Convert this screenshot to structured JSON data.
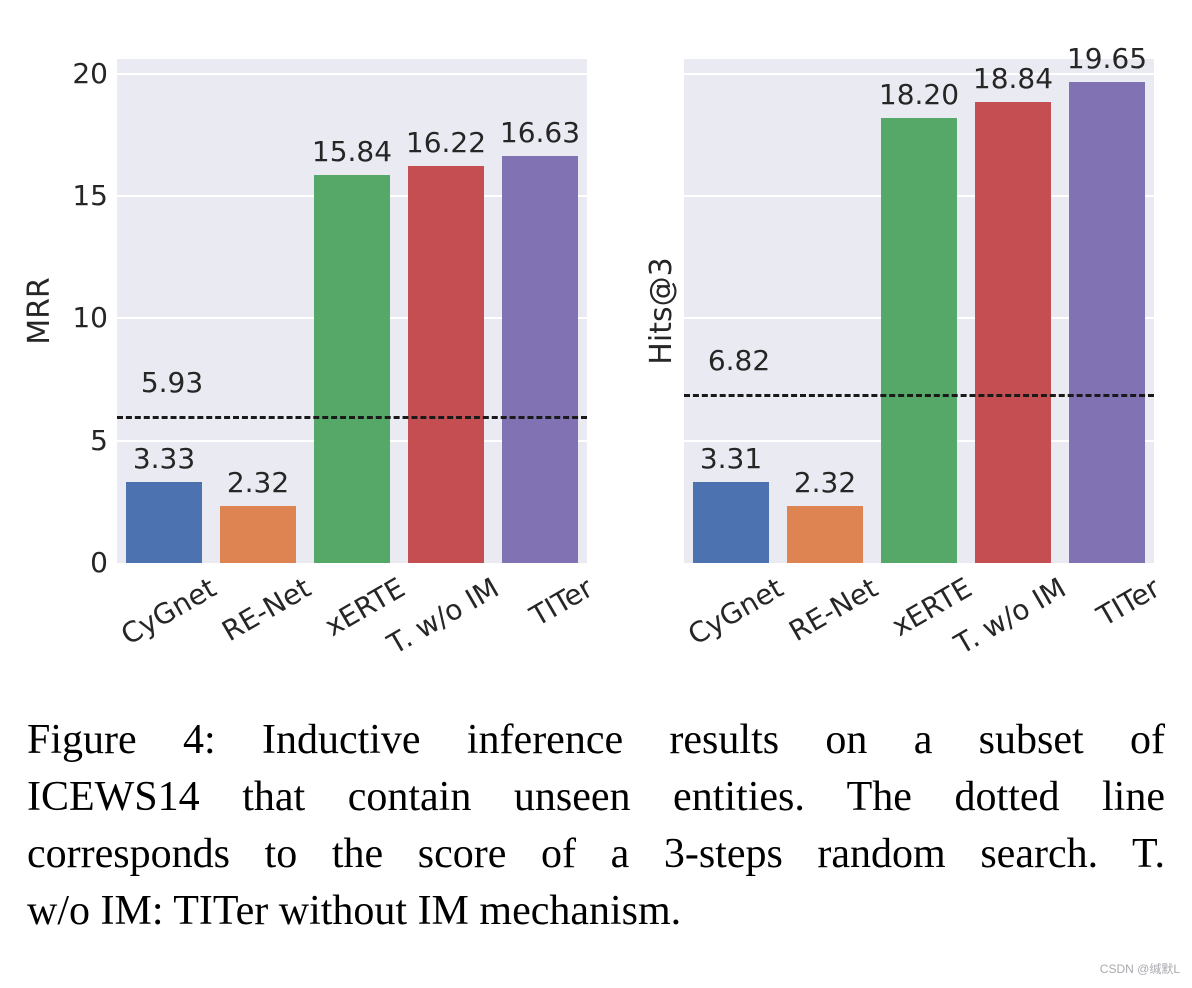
{
  "figure": {
    "caption_lines": [
      "Figure 4: Inductive inference results on a subset of",
      "ICEWS14 that contain unseen entities. The dotted line",
      "corresponds to the score of a 3-steps random search. T.",
      "w/o IM: TITer without IM mechanism."
    ],
    "watermark": "CSDN @缄默L"
  },
  "chart_data": [
    {
      "type": "bar",
      "title": "",
      "xlabel": "",
      "ylabel": "MRR",
      "categories": [
        "CyGnet",
        "RE-Net",
        "xERTE",
        "T. w/o IM",
        "TITer"
      ],
      "values": [
        3.33,
        2.32,
        15.84,
        16.22,
        16.63
      ],
      "bar_colors": [
        "#4c72b0",
        "#dd8452",
        "#55a868",
        "#c44e52",
        "#8172b3"
      ],
      "ylim": [
        0,
        20.6
      ],
      "yticks": [
        0,
        5,
        10,
        15,
        20
      ],
      "show_ytick_labels": true,
      "grid": true,
      "legend": "none",
      "plot_bg": "#eaeaf2",
      "grid_color": "#ffffff",
      "baseline": {
        "value": 5.93,
        "label": "5.93",
        "style": "dashed",
        "color": "#1a1a1a"
      }
    },
    {
      "type": "bar",
      "title": "",
      "xlabel": "",
      "ylabel": "Hits@3",
      "categories": [
        "CyGnet",
        "RE-Net",
        "xERTE",
        "T. w/o IM",
        "TITer"
      ],
      "values": [
        3.31,
        2.32,
        18.2,
        18.84,
        19.65
      ],
      "bar_colors": [
        "#4c72b0",
        "#dd8452",
        "#55a868",
        "#c44e52",
        "#8172b3"
      ],
      "ylim": [
        0,
        20.6
      ],
      "yticks": [
        0,
        5,
        10,
        15,
        20
      ],
      "show_ytick_labels": false,
      "grid": true,
      "legend": "none",
      "plot_bg": "#eaeaf2",
      "grid_color": "#ffffff",
      "baseline": {
        "value": 6.82,
        "label": "6.82",
        "style": "dashed",
        "color": "#1a1a1a"
      }
    }
  ]
}
